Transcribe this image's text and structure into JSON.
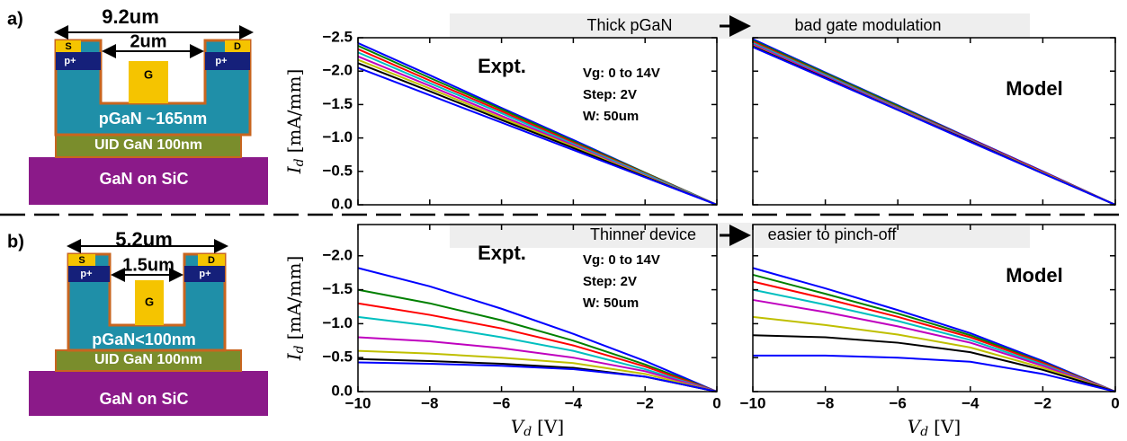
{
  "panels": [
    {
      "label": "a)",
      "banner": {
        "left": "Thick pGaN",
        "right": "bad gate modulation"
      },
      "device": {
        "width": "9.2um",
        "gate_gap": "2um",
        "source": "S",
        "drain": "D",
        "p_left": "p+",
        "p_right": "p+",
        "gate": "G",
        "pgan": "pGaN ~165nm",
        "uid": "UID GaN 100nm",
        "substrate": "GaN on SiC"
      }
    },
    {
      "label": "b)",
      "banner": {
        "left": "Thinner device",
        "right": "easier to pinch-off"
      },
      "device": {
        "width": "5.2um",
        "gate_gap": "1.5um",
        "source": "S",
        "drain": "D",
        "p_left": "p+",
        "p_right": "p+",
        "gate": "G",
        "pgan": "pGaN<100nm",
        "uid": "UID GaN 100nm",
        "substrate": "GaN on SiC"
      }
    }
  ],
  "chart_data": [
    {
      "type": "line",
      "annotations": [
        "Expt.",
        "Vg: 0 to 14V",
        "Step: 2V",
        "W: 50um"
      ],
      "ylabel": {
        "symbol": "I",
        "subscript": "d",
        "unit": "[mA/mm]"
      },
      "x": [
        -10,
        -8,
        -6,
        -4,
        -2,
        0
      ],
      "xlim": [
        -10,
        0
      ],
      "xticks": [
        -10,
        -8,
        -6,
        -4,
        -2,
        0
      ],
      "xtick_labels": false,
      "ylim": [
        0,
        -2.5
      ],
      "ytick_labels": true,
      "yticks": [
        {
          "value": -2.5,
          "label": "−2.5"
        },
        {
          "value": -2.0,
          "label": "−2.0"
        },
        {
          "value": -1.5,
          "label": "−1.5"
        },
        {
          "value": -1.0,
          "label": "−1.0"
        },
        {
          "value": -0.5,
          "label": "−0.5"
        },
        {
          "value": 0,
          "label": "0.0"
        }
      ],
      "series": [
        {
          "color": "#0000ff",
          "values": [
            -2.42,
            -1.94,
            -1.45,
            -0.97,
            -0.48,
            0
          ]
        },
        {
          "color": "#008000",
          "values": [
            -2.38,
            -1.9,
            -1.43,
            -0.95,
            -0.48,
            0
          ]
        },
        {
          "color": "#ff0000",
          "values": [
            -2.33,
            -1.86,
            -1.4,
            -0.93,
            -0.47,
            0
          ]
        },
        {
          "color": "#00bfbf",
          "values": [
            -2.28,
            -1.82,
            -1.37,
            -0.91,
            -0.46,
            0
          ]
        },
        {
          "color": "#bf00bf",
          "values": [
            -2.22,
            -1.78,
            -1.33,
            -0.89,
            -0.44,
            0
          ]
        },
        {
          "color": "#bfbf00",
          "values": [
            -2.17,
            -1.74,
            -1.3,
            -0.87,
            -0.43,
            0
          ]
        },
        {
          "color": "#000000",
          "values": [
            -2.12,
            -1.7,
            -1.27,
            -0.85,
            -0.42,
            0
          ]
        },
        {
          "color": "#0000ff",
          "values": [
            -2.05,
            -1.64,
            -1.23,
            -0.82,
            -0.41,
            0
          ]
        }
      ]
    },
    {
      "type": "line",
      "annotations": [
        "Model"
      ],
      "x": [
        -10,
        -8,
        -6,
        -4,
        -2,
        0
      ],
      "xlim": [
        -10,
        0
      ],
      "xticks": [
        -10,
        -8,
        -6,
        -4,
        -2,
        0
      ],
      "xtick_labels": false,
      "ylim": [
        0,
        -2.5
      ],
      "yticks": [
        -2.5,
        -2,
        -1.5,
        -1,
        -0.5,
        0
      ],
      "ytick_labels": false,
      "series": [
        {
          "color": "#0000ff",
          "values": [
            -2.48,
            -1.98,
            -1.49,
            -0.99,
            -0.5,
            0
          ]
        },
        {
          "color": "#008000",
          "values": [
            -2.46,
            -1.97,
            -1.48,
            -0.98,
            -0.49,
            0
          ]
        },
        {
          "color": "#ff0000",
          "values": [
            -2.44,
            -1.95,
            -1.46,
            -0.98,
            -0.49,
            0
          ]
        },
        {
          "color": "#00bfbf",
          "values": [
            -2.42,
            -1.94,
            -1.45,
            -0.97,
            -0.48,
            0
          ]
        },
        {
          "color": "#bf00bf",
          "values": [
            -2.4,
            -1.92,
            -1.44,
            -0.96,
            -0.48,
            0
          ]
        },
        {
          "color": "#bfbf00",
          "values": [
            -2.38,
            -1.9,
            -1.43,
            -0.95,
            -0.48,
            0
          ]
        },
        {
          "color": "#000000",
          "values": [
            -2.37,
            -1.9,
            -1.42,
            -0.95,
            -0.47,
            0
          ]
        },
        {
          "color": "#0000ff",
          "values": [
            -2.36,
            -1.89,
            -1.42,
            -0.94,
            -0.47,
            0
          ]
        }
      ]
    },
    {
      "type": "line",
      "annotations": [
        "Expt.",
        "Vg: 0 to 14V",
        "Step: 2V",
        "W: 50um"
      ],
      "ylabel": {
        "symbol": "I",
        "subscript": "d",
        "unit": "[mA/mm]"
      },
      "xlabel": {
        "symbol": "V",
        "subscript": "d",
        "unit": "[V]"
      },
      "x": [
        -10,
        -8,
        -6,
        -4,
        -2,
        0
      ],
      "xlim": [
        -10,
        0
      ],
      "xtick_labels": true,
      "xticks": [
        {
          "value": -10,
          "label": "−10"
        },
        {
          "value": -8,
          "label": "−8"
        },
        {
          "value": -6,
          "label": "−6"
        },
        {
          "value": -4,
          "label": "−4"
        },
        {
          "value": -2,
          "label": "−2"
        },
        0
      ],
      "ylim": [
        0,
        -2.46
      ],
      "ytick_labels": true,
      "yticks": [
        {
          "value": -2.0,
          "label": "−2.0"
        },
        {
          "value": -1.5,
          "label": "−1.5"
        },
        {
          "value": -1.0,
          "label": "−1.0"
        },
        {
          "value": -0.5,
          "label": "−0.5"
        },
        {
          "value": 0,
          "label": "0.0"
        }
      ],
      "series": [
        {
          "color": "#0000ff",
          "values": [
            -1.82,
            -1.55,
            -1.22,
            -0.85,
            -0.45,
            0
          ]
        },
        {
          "color": "#008000",
          "values": [
            -1.5,
            -1.3,
            -1.05,
            -0.75,
            -0.4,
            0
          ]
        },
        {
          "color": "#ff0000",
          "values": [
            -1.3,
            -1.13,
            -0.93,
            -0.68,
            -0.37,
            0
          ]
        },
        {
          "color": "#00bfbf",
          "values": [
            -1.1,
            -0.97,
            -0.8,
            -0.6,
            -0.33,
            0
          ]
        },
        {
          "color": "#bf00bf",
          "values": [
            -0.8,
            -0.74,
            -0.64,
            -0.5,
            -0.3,
            0
          ]
        },
        {
          "color": "#bfbf00",
          "values": [
            -0.6,
            -0.56,
            -0.5,
            -0.42,
            -0.26,
            0
          ]
        },
        {
          "color": "#000000",
          "values": [
            -0.48,
            -0.45,
            -0.41,
            -0.35,
            -0.22,
            0
          ]
        },
        {
          "color": "#0000ff",
          "values": [
            -0.43,
            -0.41,
            -0.38,
            -0.33,
            -0.22,
            0
          ]
        }
      ]
    },
    {
      "type": "line",
      "annotations": [
        "Model"
      ],
      "xlabel": {
        "symbol": "V",
        "subscript": "d",
        "unit": "[V]"
      },
      "x": [
        -10,
        -8,
        -6,
        -4,
        -2,
        0
      ],
      "xlim": [
        -10,
        0
      ],
      "xtick_labels": true,
      "xticks": [
        {
          "value": -10,
          "label": "−10"
        },
        {
          "value": -8,
          "label": "−8"
        },
        {
          "value": -6,
          "label": "−6"
        },
        {
          "value": -4,
          "label": "−4"
        },
        {
          "value": -2,
          "label": "−2"
        },
        0
      ],
      "ylim": [
        0,
        -2.46
      ],
      "yticks": [
        -2,
        -1.5,
        -1,
        -0.5,
        0
      ],
      "ytick_labels": false,
      "series": [
        {
          "color": "#0000ff",
          "values": [
            -1.82,
            -1.52,
            -1.2,
            -0.86,
            -0.45,
            0
          ]
        },
        {
          "color": "#008000",
          "values": [
            -1.72,
            -1.44,
            -1.15,
            -0.83,
            -0.43,
            0
          ]
        },
        {
          "color": "#ff0000",
          "values": [
            -1.62,
            -1.37,
            -1.1,
            -0.8,
            -0.42,
            0
          ]
        },
        {
          "color": "#00bfbf",
          "values": [
            -1.5,
            -1.28,
            -1.04,
            -0.76,
            -0.4,
            0
          ]
        },
        {
          "color": "#bf00bf",
          "values": [
            -1.35,
            -1.17,
            -0.96,
            -0.72,
            -0.38,
            0
          ]
        },
        {
          "color": "#bfbf00",
          "values": [
            -1.1,
            -0.98,
            -0.84,
            -0.65,
            -0.35,
            0
          ]
        },
        {
          "color": "#000000",
          "values": [
            -0.83,
            -0.8,
            -0.72,
            -0.58,
            -0.32,
            0
          ]
        },
        {
          "color": "#0000ff",
          "values": [
            -0.53,
            -0.53,
            -0.5,
            -0.44,
            -0.26,
            0
          ]
        }
      ]
    }
  ]
}
